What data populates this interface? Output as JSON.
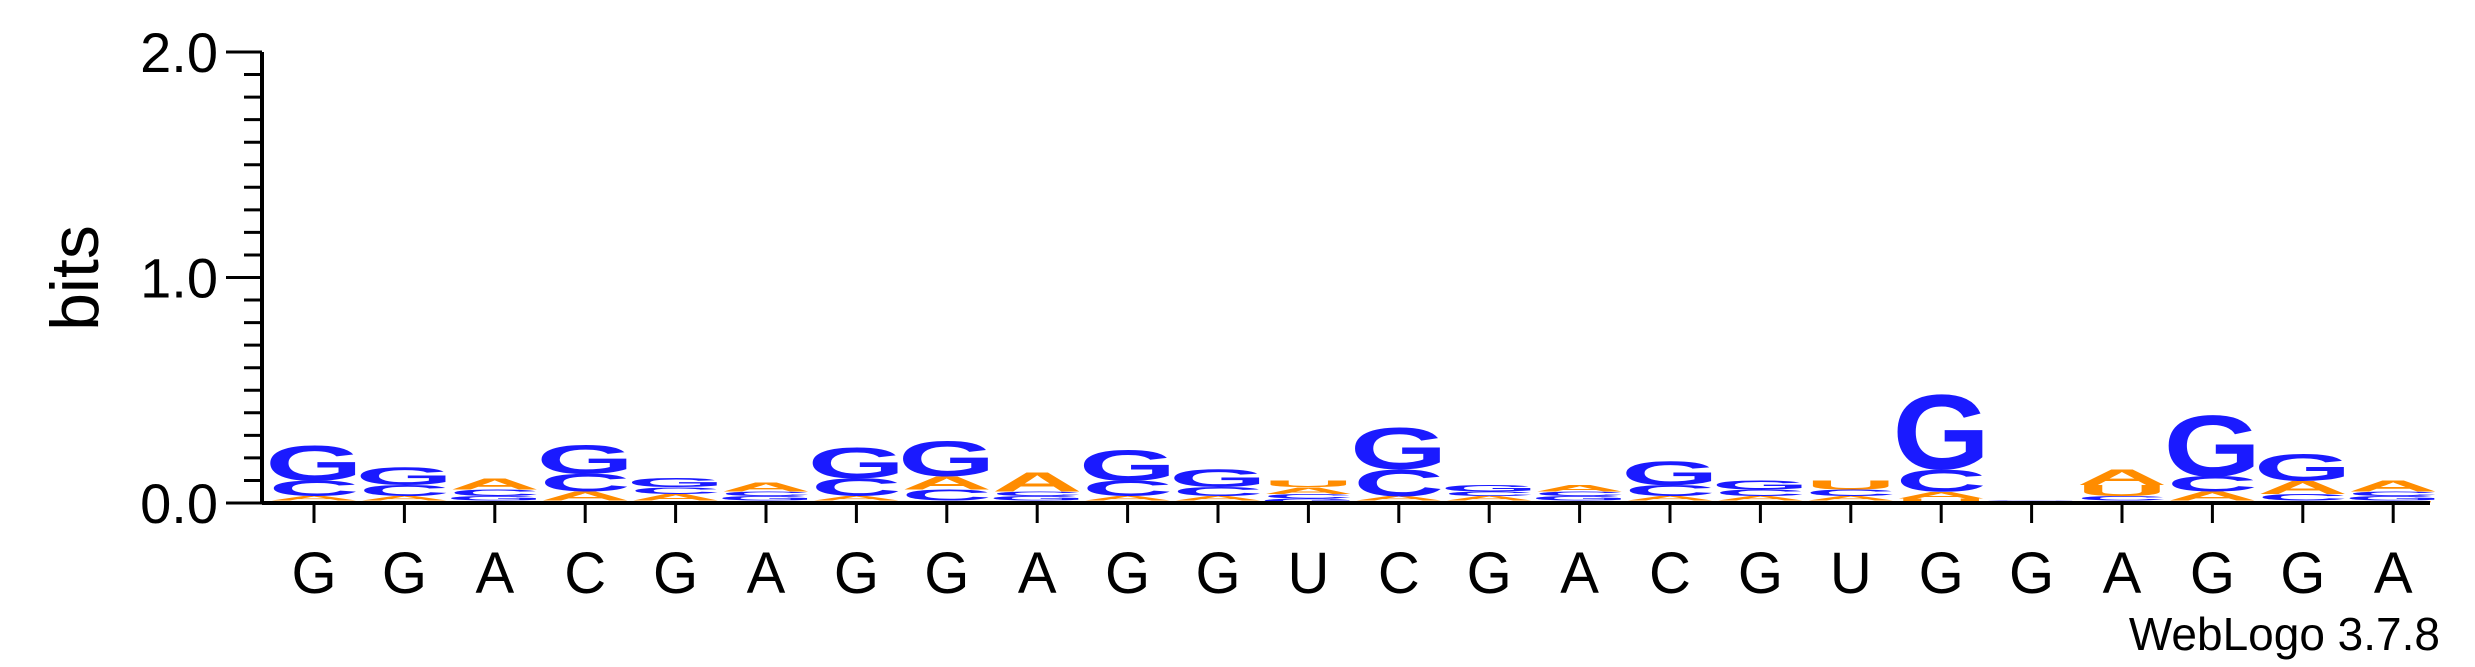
{
  "chart_data": {
    "type": "sequence-logo",
    "ylabel": "bits",
    "ylim": [
      0,
      2.0
    ],
    "yticks": [
      {
        "value": 0.0,
        "label": "0.0"
      },
      {
        "value": 1.0,
        "label": "1.0"
      },
      {
        "value": 2.0,
        "label": "2.0"
      }
    ],
    "colors": {
      "G": "#1a1aff",
      "C": "#1a1aff",
      "A": "#ff8c00",
      "U": "#ff8c00"
    },
    "positions": [
      {
        "label": "G",
        "stack": [
          {
            "letter": "U",
            "bits": 0.01
          },
          {
            "letter": "A",
            "bits": 0.02
          },
          {
            "letter": "C",
            "bits": 0.07
          },
          {
            "letter": "G",
            "bits": 0.16
          }
        ]
      },
      {
        "label": "G",
        "stack": [
          {
            "letter": "U",
            "bits": 0.01
          },
          {
            "letter": "A",
            "bits": 0.02
          },
          {
            "letter": "C",
            "bits": 0.05
          },
          {
            "letter": "G",
            "bits": 0.08
          }
        ]
      },
      {
        "label": "A",
        "stack": [
          {
            "letter": "U",
            "bits": 0.01
          },
          {
            "letter": "G",
            "bits": 0.02
          },
          {
            "letter": "C",
            "bits": 0.03
          },
          {
            "letter": "A",
            "bits": 0.05
          }
        ]
      },
      {
        "label": "C",
        "stack": [
          {
            "letter": "U",
            "bits": 0.01
          },
          {
            "letter": "A",
            "bits": 0.04
          },
          {
            "letter": "C",
            "bits": 0.08
          },
          {
            "letter": "G",
            "bits": 0.13
          }
        ]
      },
      {
        "label": "G",
        "stack": [
          {
            "letter": "U",
            "bits": 0.01
          },
          {
            "letter": "A",
            "bits": 0.03
          },
          {
            "letter": "C",
            "bits": 0.03
          },
          {
            "letter": "G",
            "bits": 0.04
          }
        ]
      },
      {
        "label": "A",
        "stack": [
          {
            "letter": "U",
            "bits": 0.01
          },
          {
            "letter": "G",
            "bits": 0.02
          },
          {
            "letter": "C",
            "bits": 0.02
          },
          {
            "letter": "A",
            "bits": 0.04
          }
        ]
      },
      {
        "label": "G",
        "stack": [
          {
            "letter": "U",
            "bits": 0.01
          },
          {
            "letter": "A",
            "bits": 0.02
          },
          {
            "letter": "C",
            "bits": 0.08
          },
          {
            "letter": "G",
            "bits": 0.14
          }
        ]
      },
      {
        "label": "G",
        "stack": [
          {
            "letter": "U",
            "bits": 0.01
          },
          {
            "letter": "C",
            "bits": 0.05
          },
          {
            "letter": "A",
            "bits": 0.06
          },
          {
            "letter": "G",
            "bits": 0.16
          }
        ]
      },
      {
        "label": "A",
        "stack": [
          {
            "letter": "U",
            "bits": 0.01
          },
          {
            "letter": "G",
            "bits": 0.02
          },
          {
            "letter": "C",
            "bits": 0.02
          },
          {
            "letter": "A",
            "bits": 0.09
          }
        ]
      },
      {
        "label": "G",
        "stack": [
          {
            "letter": "U",
            "bits": 0.01
          },
          {
            "letter": "A",
            "bits": 0.02
          },
          {
            "letter": "C",
            "bits": 0.07
          },
          {
            "letter": "G",
            "bits": 0.14
          }
        ]
      },
      {
        "label": "G",
        "stack": [
          {
            "letter": "U",
            "bits": 0.01
          },
          {
            "letter": "A",
            "bits": 0.02
          },
          {
            "letter": "C",
            "bits": 0.04
          },
          {
            "letter": "G",
            "bits": 0.08
          }
        ]
      },
      {
        "label": "U",
        "stack": [
          {
            "letter": "G",
            "bits": 0.02
          },
          {
            "letter": "C",
            "bits": 0.02
          },
          {
            "letter": "A",
            "bits": 0.03
          },
          {
            "letter": "U",
            "bits": 0.03
          }
        ]
      },
      {
        "label": "C",
        "stack": [
          {
            "letter": "U",
            "bits": 0.01
          },
          {
            "letter": "A",
            "bits": 0.02
          },
          {
            "letter": "C",
            "bits": 0.12
          },
          {
            "letter": "G",
            "bits": 0.19
          }
        ]
      },
      {
        "label": "G",
        "stack": [
          {
            "letter": "U",
            "bits": 0.01
          },
          {
            "letter": "A",
            "bits": 0.02
          },
          {
            "letter": "C",
            "bits": 0.02
          },
          {
            "letter": "G",
            "bits": 0.03
          }
        ]
      },
      {
        "label": "A",
        "stack": [
          {
            "letter": "U",
            "bits": 0.01
          },
          {
            "letter": "G",
            "bits": 0.02
          },
          {
            "letter": "C",
            "bits": 0.02
          },
          {
            "letter": "A",
            "bits": 0.03
          }
        ]
      },
      {
        "label": "C",
        "stack": [
          {
            "letter": "U",
            "bits": 0.01
          },
          {
            "letter": "A",
            "bits": 0.02
          },
          {
            "letter": "C",
            "bits": 0.05
          },
          {
            "letter": "G",
            "bits": 0.11
          }
        ]
      },
      {
        "label": "G",
        "stack": [
          {
            "letter": "U",
            "bits": 0.01
          },
          {
            "letter": "A",
            "bits": 0.02
          },
          {
            "letter": "C",
            "bits": 0.03
          },
          {
            "letter": "G",
            "bits": 0.04
          }
        ]
      },
      {
        "label": "U",
        "stack": [
          {
            "letter": "G",
            "bits": 0.01
          },
          {
            "letter": "A",
            "bits": 0.02
          },
          {
            "letter": "C",
            "bits": 0.03
          },
          {
            "letter": "U",
            "bits": 0.04
          }
        ]
      },
      {
        "label": "G",
        "stack": [
          {
            "letter": "U",
            "bits": 0.02
          },
          {
            "letter": "A",
            "bits": 0.03
          },
          {
            "letter": "C",
            "bits": 0.1
          },
          {
            "letter": "G",
            "bits": 0.34
          }
        ]
      },
      {
        "label": "G",
        "stack": [
          {
            "letter": "U",
            "bits": 0.003
          },
          {
            "letter": "A",
            "bits": 0.003
          },
          {
            "letter": "C",
            "bits": 0.003
          },
          {
            "letter": "G",
            "bits": 0.003
          }
        ]
      },
      {
        "label": "A",
        "stack": [
          {
            "letter": "G",
            "bits": 0.01
          },
          {
            "letter": "C",
            "bits": 0.02
          },
          {
            "letter": "U",
            "bits": 0.05
          },
          {
            "letter": "A",
            "bits": 0.07
          }
        ]
      },
      {
        "label": "G",
        "stack": [
          {
            "letter": "U",
            "bits": 0.01
          },
          {
            "letter": "A",
            "bits": 0.04
          },
          {
            "letter": "C",
            "bits": 0.07
          },
          {
            "letter": "G",
            "bits": 0.28
          }
        ]
      },
      {
        "label": "G",
        "stack": [
          {
            "letter": "U",
            "bits": 0.01
          },
          {
            "letter": "C",
            "bits": 0.03
          },
          {
            "letter": "A",
            "bits": 0.06
          },
          {
            "letter": "G",
            "bits": 0.12
          }
        ]
      },
      {
        "label": "A",
        "stack": [
          {
            "letter": "U",
            "bits": 0.01
          },
          {
            "letter": "G",
            "bits": 0.02
          },
          {
            "letter": "C",
            "bits": 0.02
          },
          {
            "letter": "A",
            "bits": 0.05
          }
        ]
      }
    ],
    "footer": "WebLogo 3.7.8"
  }
}
